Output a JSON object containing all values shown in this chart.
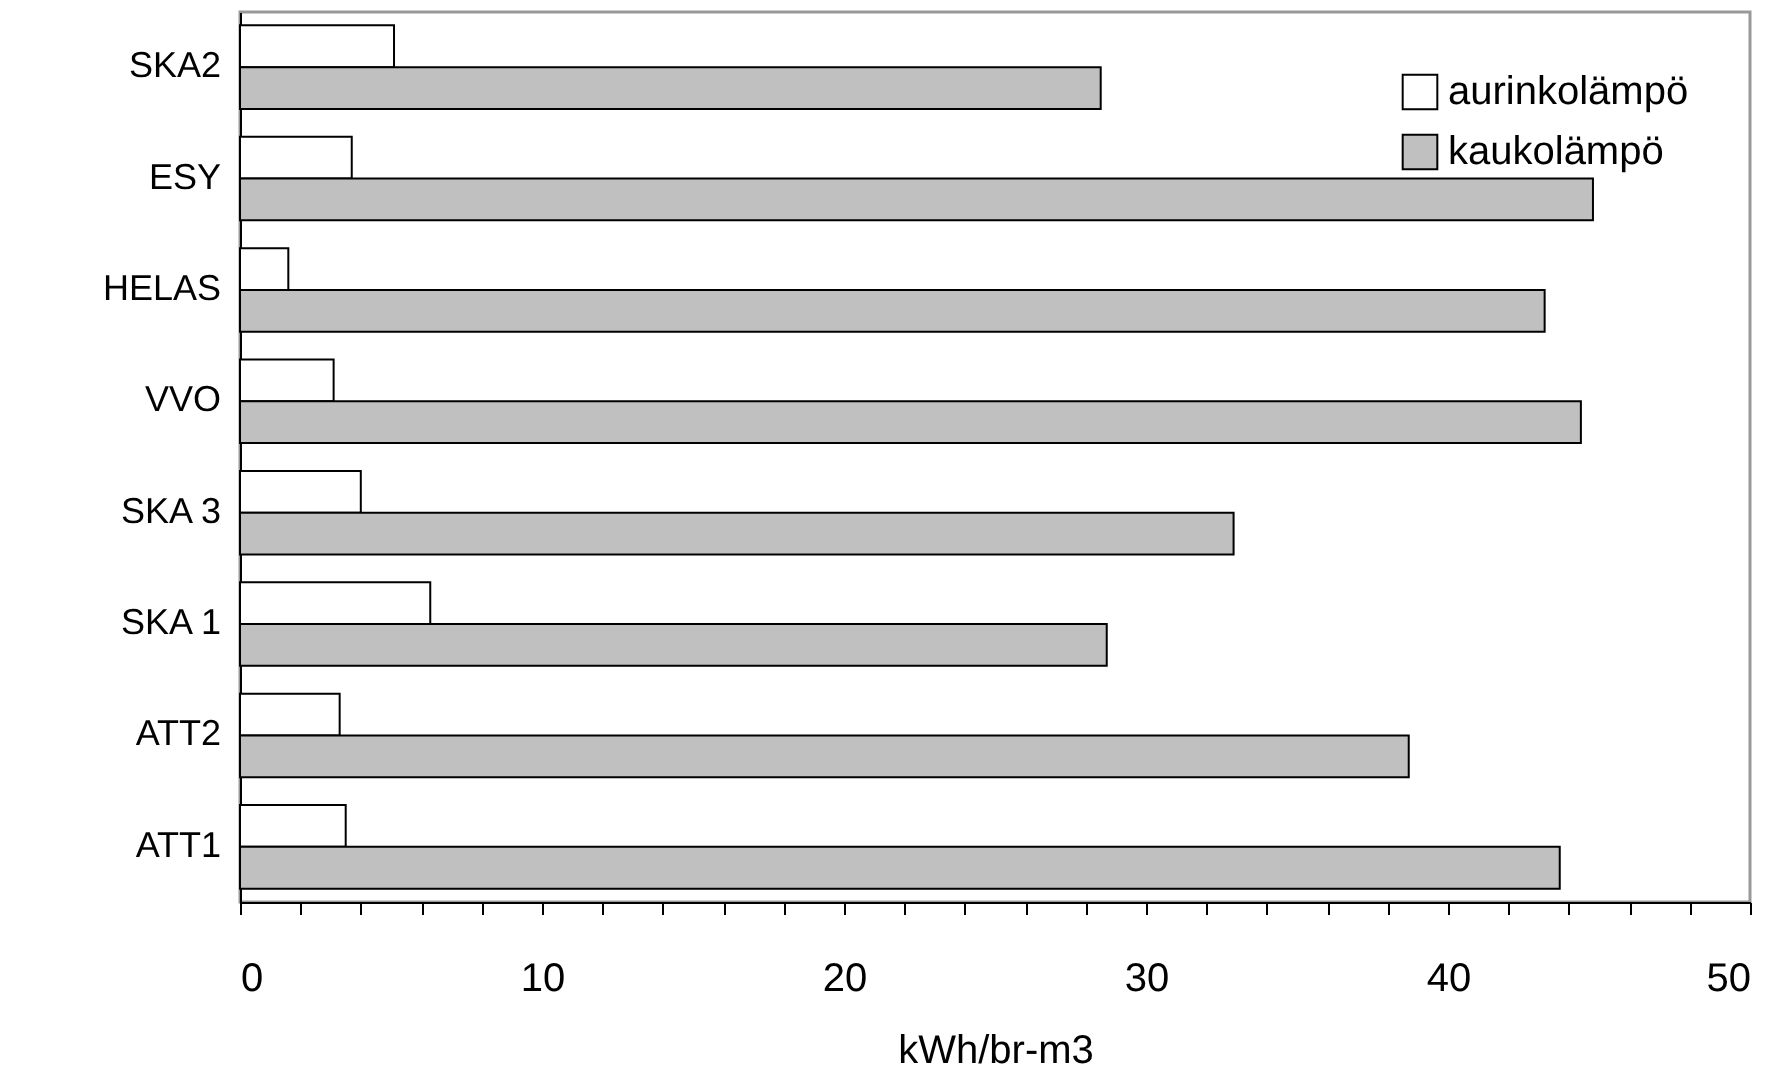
{
  "chart_data": {
    "type": "bar",
    "orientation": "horizontal",
    "xlabel": "kWh/br-m3",
    "categories": [
      "SKA2",
      "ESY",
      "HELAS",
      "VVO",
      "SKA 3",
      "SKA 1",
      "ATT2",
      "ATT1"
    ],
    "series": [
      {
        "name": "aurinkolämpö",
        "color": "#ffffff",
        "values": [
          5.1,
          3.7,
          1.6,
          3.1,
          4.0,
          6.3,
          3.3,
          3.5
        ]
      },
      {
        "name": "kaukolämpö",
        "color": "#c0c0c0",
        "values": [
          28.5,
          44.8,
          43.2,
          44.4,
          32.9,
          28.7,
          38.7,
          43.7
        ]
      }
    ],
    "xlim": [
      0,
      50
    ],
    "xticks": [
      0,
      {
        "value": 2,
        "label": null
      },
      {
        "value": 4,
        "label": null
      },
      {
        "value": 6,
        "label": null
      },
      {
        "value": 8,
        "label": null
      },
      10,
      {
        "value": 12,
        "label": null
      },
      {
        "value": 14,
        "label": null
      },
      {
        "value": 16,
        "label": null
      },
      {
        "value": 18,
        "label": null
      },
      20,
      {
        "value": 22,
        "label": null
      },
      {
        "value": 24,
        "label": null
      },
      {
        "value": 26,
        "label": null
      },
      {
        "value": 28,
        "label": null
      },
      30,
      {
        "value": 32,
        "label": null
      },
      {
        "value": 34,
        "label": null
      },
      {
        "value": 36,
        "label": null
      },
      {
        "value": 38,
        "label": null
      },
      40,
      {
        "value": 42,
        "label": null
      },
      {
        "value": 44,
        "label": null
      },
      {
        "value": 46,
        "label": null
      },
      {
        "value": 48,
        "label": null
      },
      50
    ],
    "grid": false,
    "legend": "top right"
  }
}
